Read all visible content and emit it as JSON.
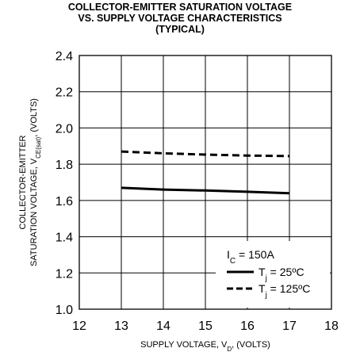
{
  "chart_data": {
    "type": "line",
    "title_lines": [
      "COLLECTOR-EMITTER SATURATION VOLTAGE",
      "VS. SUPPLY VOLTAGE CHARACTERISTICS",
      "(TYPICAL)"
    ],
    "xlabel": {
      "main": "SUPPLY VOLTAGE, V",
      "sub": "D",
      "suffix": ", (VOLTS)"
    },
    "ylabel": {
      "line1": "COLLECTOR-EMITTER",
      "line2_main": "SATURATION VOLTAGE, V",
      "line2_sub": "CE(sat)",
      "line2_suffix": ", (VOLTS)"
    },
    "xlim": [
      12,
      18
    ],
    "ylim": [
      1.0,
      2.4
    ],
    "x_ticks": [
      "12",
      "13",
      "14",
      "15",
      "16",
      "17",
      "18"
    ],
    "y_ticks": [
      "1.0",
      "1.2",
      "1.4",
      "1.6",
      "1.8",
      "2.0",
      "2.2",
      "2.4"
    ],
    "grid": true,
    "legend": {
      "position": "bottom-right",
      "condition": {
        "main": "I",
        "sub": "C",
        "suffix": " = 150A"
      },
      "entries": [
        {
          "main": "T",
          "sub": "j",
          "suffix": " = 25ºC",
          "style": "solid"
        },
        {
          "main": "T",
          "sub": "j",
          "suffix": " = 125ºC",
          "style": "dashed"
        }
      ]
    },
    "series": [
      {
        "label": "Tj = 25ºC",
        "style": "solid",
        "x": [
          13,
          14,
          15,
          16,
          17
        ],
        "y": [
          1.67,
          1.66,
          1.655,
          1.648,
          1.64
        ]
      },
      {
        "label": "Tj = 125ºC",
        "style": "dashed",
        "x": [
          13,
          14,
          15,
          16,
          17
        ],
        "y": [
          1.87,
          1.86,
          1.853,
          1.848,
          1.845
        ]
      }
    ]
  }
}
